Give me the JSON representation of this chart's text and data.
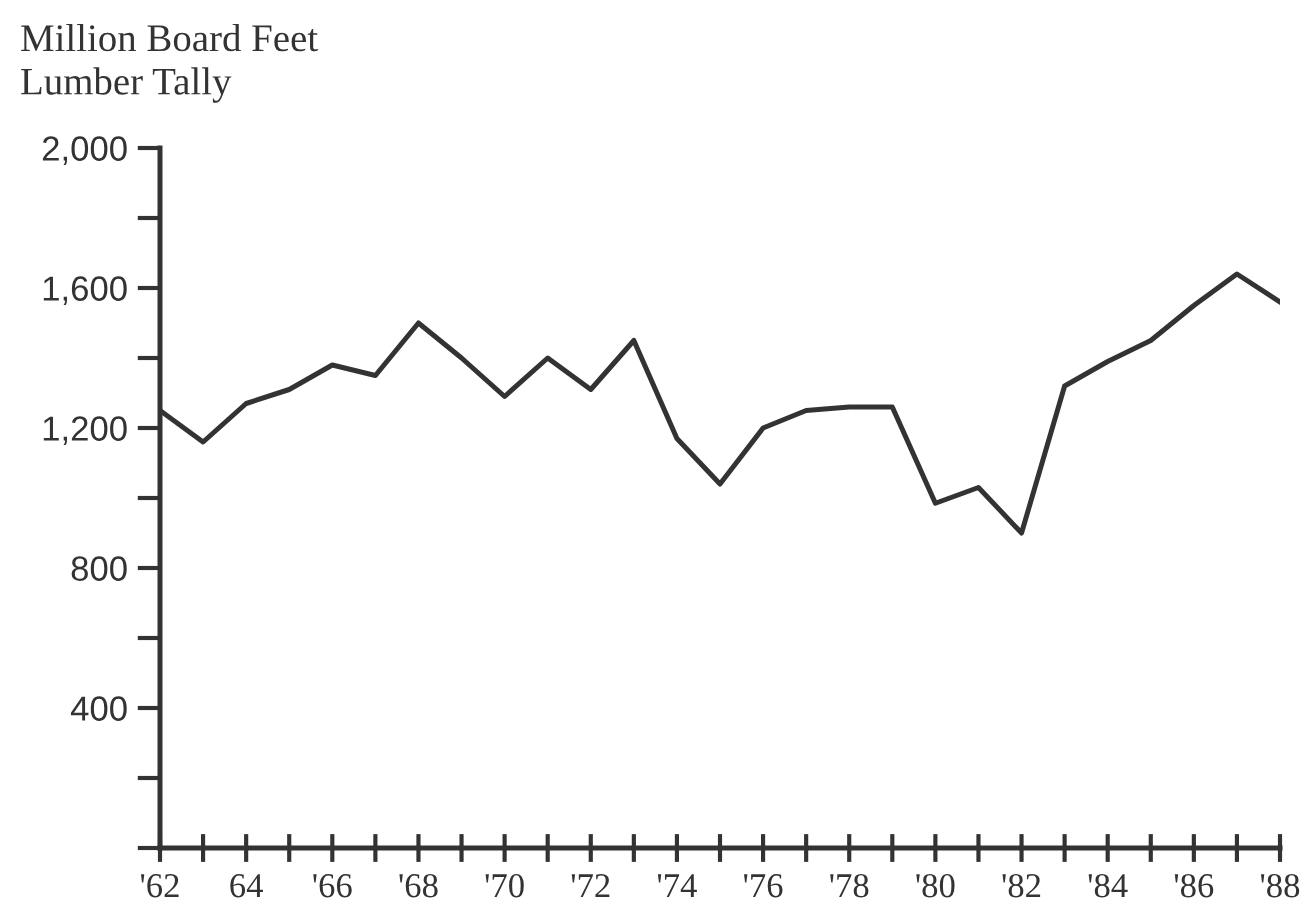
{
  "chart_data": {
    "type": "line",
    "ylabel": "Million Board Feet\nLumber Tally",
    "x": [
      1962,
      1963,
      1964,
      1965,
      1966,
      1967,
      1968,
      1969,
      1970,
      1971,
      1972,
      1973,
      1974,
      1975,
      1976,
      1977,
      1978,
      1979,
      1980,
      1981,
      1982,
      1983,
      1984,
      1985,
      1986,
      1987,
      1988
    ],
    "series": [
      {
        "color": "#333333",
        "values": [
          1250,
          1160,
          1270,
          1310,
          1380,
          1350,
          1500,
          1400,
          1290,
          1400,
          1310,
          1450,
          1170,
          1040,
          1200,
          1250,
          1260,
          1260,
          985,
          1030,
          900,
          1320,
          1390,
          1450,
          1550,
          1640,
          1560
        ]
      }
    ],
    "xlim": [
      1962,
      1988
    ],
    "xticks": [
      {
        "value": 1962,
        "label": "'62"
      },
      {
        "value": 1963,
        "label": null
      },
      {
        "value": 1964,
        "label": "64"
      },
      {
        "value": 1965,
        "label": null
      },
      {
        "value": 1966,
        "label": "'66"
      },
      {
        "value": 1967,
        "label": null
      },
      {
        "value": 1968,
        "label": "'68"
      },
      {
        "value": 1969,
        "label": null
      },
      {
        "value": 1970,
        "label": "'70"
      },
      {
        "value": 1971,
        "label": null
      },
      {
        "value": 1972,
        "label": "'72"
      },
      {
        "value": 1973,
        "label": null
      },
      {
        "value": 1974,
        "label": "'74"
      },
      {
        "value": 1975,
        "label": null
      },
      {
        "value": 1976,
        "label": "'76"
      },
      {
        "value": 1977,
        "label": null
      },
      {
        "value": 1978,
        "label": "'78"
      },
      {
        "value": 1979,
        "label": null
      },
      {
        "value": 1980,
        "label": "'80"
      },
      {
        "value": 1981,
        "label": null
      },
      {
        "value": 1982,
        "label": "'82"
      },
      {
        "value": 1983,
        "label": null
      },
      {
        "value": 1984,
        "label": "'84"
      },
      {
        "value": 1985,
        "label": null
      },
      {
        "value": 1986,
        "label": "'86"
      },
      {
        "value": 1987,
        "label": null
      },
      {
        "value": 1988,
        "label": "'88"
      }
    ],
    "ylim": [
      0,
      2000
    ],
    "yticks": [
      {
        "value": 0,
        "label": null
      },
      {
        "value": 200,
        "label": null
      },
      {
        "value": 400,
        "label": "400"
      },
      {
        "value": 600,
        "label": null
      },
      {
        "value": 800,
        "label": "800"
      },
      {
        "value": 1000,
        "label": null
      },
      {
        "value": 1200,
        "label": "1,200"
      },
      {
        "value": 1400,
        "label": null
      },
      {
        "value": 1600,
        "label": "1,600"
      },
      {
        "value": 1800,
        "label": null
      },
      {
        "value": 2000,
        "label": "2,000"
      }
    ],
    "grid": false,
    "legend": false,
    "marker": "none",
    "line_style": "solid"
  }
}
